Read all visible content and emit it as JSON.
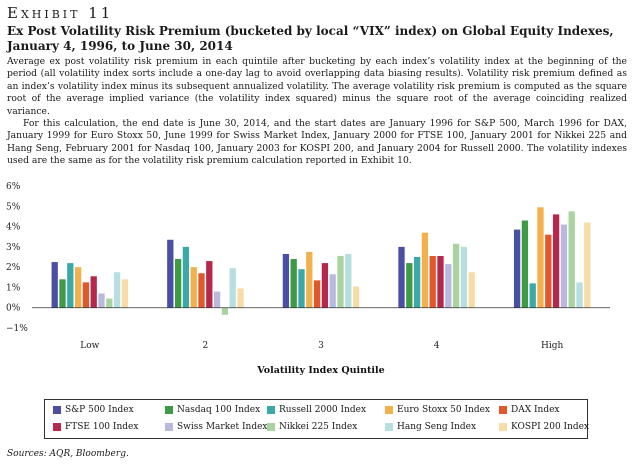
{
  "header": {
    "exhibit": "Exhibit 11",
    "title": "Ex Post Volatility Risk Premium (bucketed by local “VIX” index) on Global Equity Indexes, January 4, 1996, to June 30, 2014"
  },
  "description": {
    "p1": "Average ex post volatility risk premium in each quintile after bucketing by each index’s volatility index at the beginning of the period (all volatility index sorts include a one-day lag to avoid overlapping data biasing results). Volatility risk premium defined as an index’s volatility index minus its subsequent annualized volatility. The average volatility risk premium is computed as the square root of the average implied variance (the volatility index squared) minus the square root of the average coinciding realized variance.",
    "p2": "For this calculation, the end date is June 30, 2014, and the start dates are January 1996 for S&P 500, March 1996 for DAX, January 1999 for Euro Stoxx 50, June 1999 for Swiss Market Index, January 2000 for FTSE 100, January 2001 for Nikkei 225 and Hang Seng, February 2001 for Nasdaq 100, January 2003 for KOSPI 200, and January 2004 for Russell 2000. The volatility indexes used are the same as for the volatility risk premium calculation reported in Exhibit 10."
  },
  "chart_data": {
    "type": "bar",
    "xlabel": "Volatility Index Quintile",
    "ylabel": "",
    "ylim": [
      -1,
      6
    ],
    "yticks": [
      -1,
      0,
      1,
      2,
      3,
      4,
      5,
      6
    ],
    "ytick_labels": [
      "−1%",
      "0%",
      "1%",
      "2%",
      "3%",
      "4%",
      "5%",
      "6%"
    ],
    "categories": [
      "Low",
      "2",
      "3",
      "4",
      "High"
    ],
    "legend_position": "bottom",
    "grid": false,
    "series": [
      {
        "name": "S&P 500 Index",
        "color": "#4b4fa3",
        "values": [
          2.25,
          3.35,
          2.65,
          3.0,
          3.85
        ]
      },
      {
        "name": "Nasdaq 100 Index",
        "color": "#3f9a45",
        "values": [
          1.4,
          2.4,
          2.4,
          2.2,
          4.3
        ]
      },
      {
        "name": "Russell 2000 Index",
        "color": "#3aa9a7",
        "values": [
          2.2,
          3.0,
          1.9,
          2.5,
          1.2
        ]
      },
      {
        "name": "Euro Stoxx 50 Index",
        "color": "#f3b04f",
        "values": [
          2.0,
          2.0,
          2.75,
          3.7,
          4.95
        ]
      },
      {
        "name": "DAX Index",
        "color": "#e2582a",
        "values": [
          1.25,
          1.7,
          1.35,
          2.55,
          3.6
        ]
      },
      {
        "name": "FTSE 100 Index",
        "color": "#b5274b",
        "values": [
          1.55,
          2.3,
          2.2,
          2.55,
          4.6
        ]
      },
      {
        "name": "Swiss Market Index",
        "color": "#b9b9dd",
        "values": [
          0.7,
          0.8,
          1.65,
          2.15,
          4.1
        ]
      },
      {
        "name": "Nikkei 225 Index",
        "color": "#a9d49f",
        "values": [
          0.45,
          -0.35,
          2.55,
          3.15,
          4.75
        ]
      },
      {
        "name": "Hang Seng Index",
        "color": "#b7dfe2",
        "values": [
          1.75,
          1.95,
          2.65,
          3.0,
          1.25
        ]
      },
      {
        "name": "KOSPI 200 Index",
        "color": "#f8dca6",
        "values": [
          1.4,
          0.95,
          1.05,
          1.75,
          4.2
        ]
      }
    ]
  },
  "source": "Sources: AQR, Bloomberg."
}
